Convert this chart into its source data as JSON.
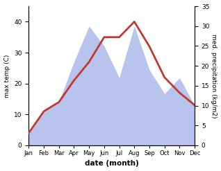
{
  "months": [
    "Jan",
    "Feb",
    "Mar",
    "Apr",
    "May",
    "Jun",
    "Jul",
    "Aug",
    "Sep",
    "Oct",
    "Nov",
    "Dec"
  ],
  "month_indices": [
    1,
    2,
    3,
    4,
    5,
    6,
    7,
    8,
    9,
    10,
    11,
    12
  ],
  "max_temp": [
    4,
    11,
    14,
    21,
    27,
    35,
    35,
    40,
    32,
    22,
    17,
    13
  ],
  "precipitation": [
    3,
    9,
    11,
    21,
    30,
    25,
    17,
    30,
    19,
    13,
    17,
    10
  ],
  "temp_color": "#c0392b",
  "precip_fill_color": "#b8c4ee",
  "xlabel": "date (month)",
  "ylabel_left": "max temp (C)",
  "ylabel_right": "med. precipitation (kg/m2)",
  "ylim_left": [
    0,
    45
  ],
  "ylim_right": [
    0,
    35
  ],
  "yticks_left": [
    0,
    10,
    20,
    30,
    40
  ],
  "yticks_right": [
    0,
    5,
    10,
    15,
    20,
    25,
    30,
    35
  ],
  "background_color": "#ffffff",
  "line_width": 2.0
}
